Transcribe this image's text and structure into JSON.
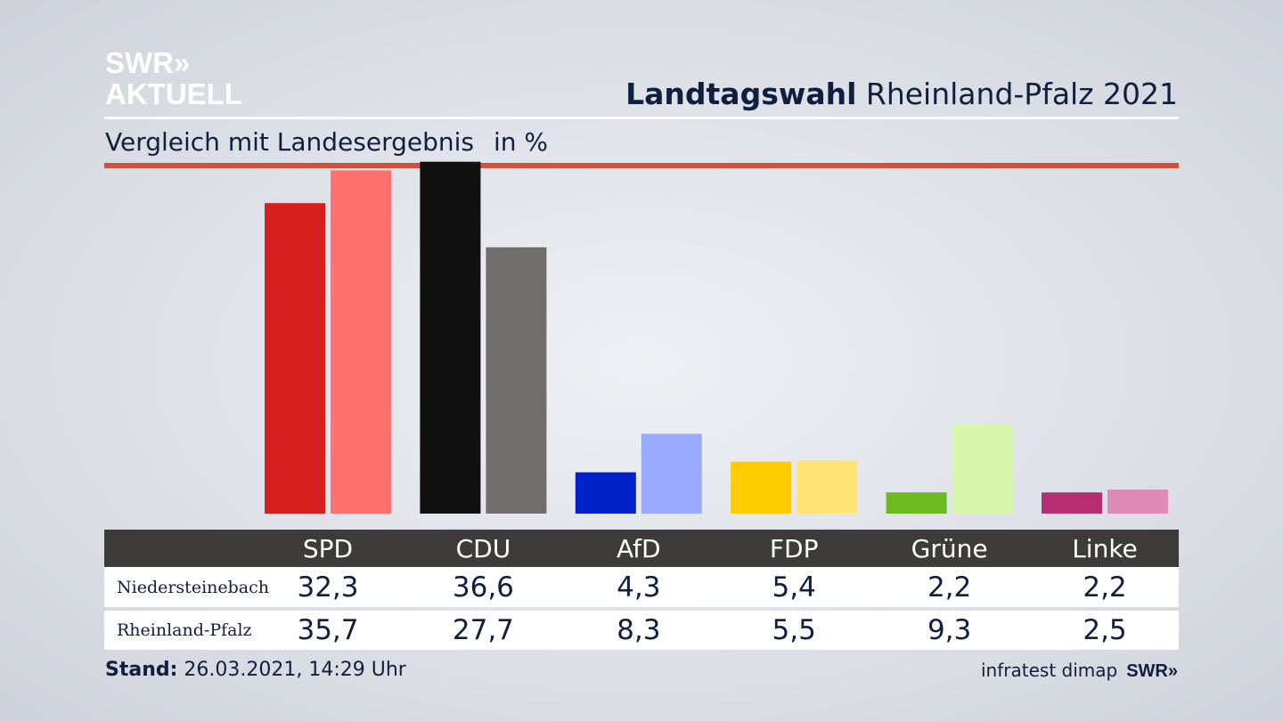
{
  "logo": {
    "line1": "SWR»",
    "line2": "AKTUELL"
  },
  "header": {
    "title_bold": "Landtagswahl",
    "title_rest": "Rheinland-Pfalz 2021"
  },
  "subtitle": {
    "text": "Vergleich mit Landesergebnis",
    "unit": "in %"
  },
  "chart_data": {
    "type": "bar",
    "categories": [
      "SPD",
      "CDU",
      "AfD",
      "FDP",
      "Grüne",
      "Linke"
    ],
    "series": [
      {
        "name": "Niedersteinebach",
        "values": [
          32.3,
          36.6,
          4.3,
          5.4,
          2.2,
          2.2
        ]
      },
      {
        "name": "Rheinland-Pfalz",
        "values": [
          35.7,
          27.7,
          8.3,
          5.5,
          9.3,
          2.5
        ]
      }
    ],
    "colors": {
      "Niedersteinebach": [
        "#d71f1f",
        "#111111",
        "#0022c8",
        "#ffcc00",
        "#6aba20",
        "#b62d72"
      ],
      "Rheinland-Pfalz": [
        "#ff716c",
        "#6f6e6c",
        "#9aaaff",
        "#ffe375",
        "#d6f6ab",
        "#e08ab8"
      ]
    },
    "ylim": [
      0,
      40
    ],
    "grid": false
  },
  "table": {
    "rows": [
      {
        "label": "Niedersteinebach",
        "values": [
          "32,3",
          "36,6",
          "4,3",
          "5,4",
          "2,2",
          "2,2"
        ]
      },
      {
        "label": "Rheinland-Pfalz",
        "values": [
          "35,7",
          "27,7",
          "8,3",
          "5,5",
          "9,3",
          "2,5"
        ]
      }
    ]
  },
  "footer": {
    "stand_label": "Stand:",
    "stand_value": " 26.03.2021, 14:29 Uhr",
    "source": "infratest dimap",
    "brand": "SWR»"
  }
}
